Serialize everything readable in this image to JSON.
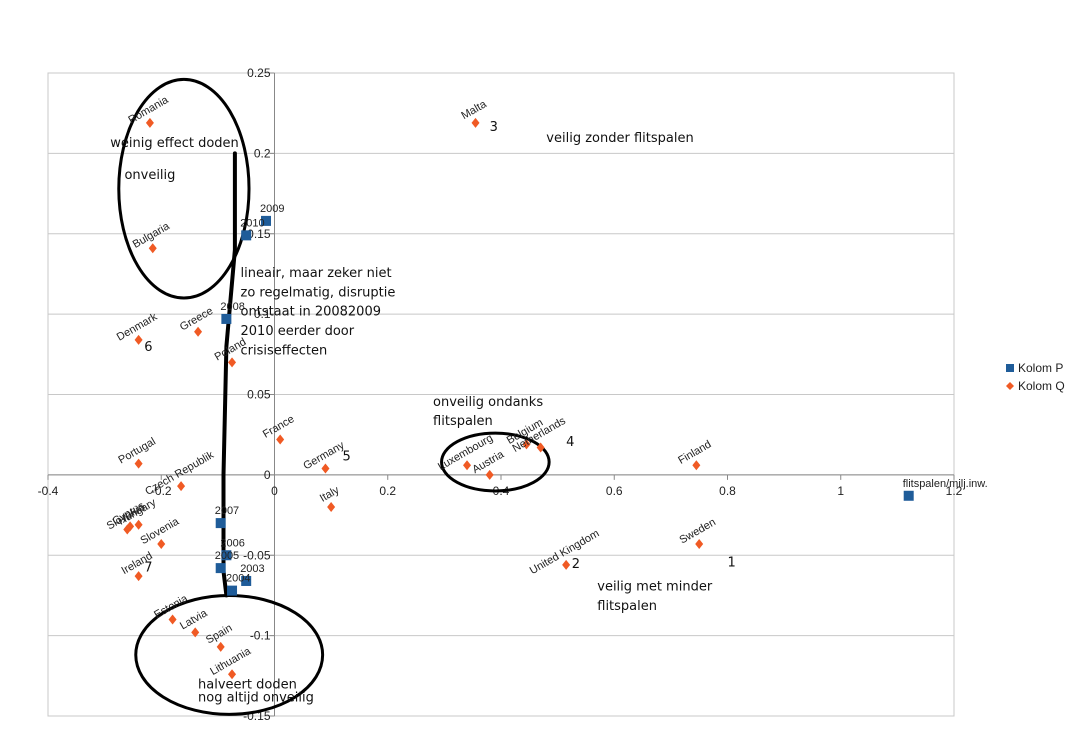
{
  "chart_data": {
    "type": "scatter",
    "xlim": [
      -0.4,
      1.2
    ],
    "ylim": [
      -0.15,
      0.25
    ],
    "x_ticks": [
      "-0.4",
      "-0.2",
      "0",
      "0.2",
      "0.4",
      "0.6",
      "0.8",
      "1",
      "1.2"
    ],
    "y_ticks": [
      "0.25",
      "0.2",
      "0.15",
      "0.1",
      "0.05",
      "0",
      "-0.05",
      "-0.1",
      "-0.15"
    ],
    "grid": "horizontal",
    "legend_position": "right",
    "series": [
      {
        "name": "Kolom P",
        "color": "#1f5c99",
        "marker": "square",
        "points": [
          {
            "x": -0.015,
            "y": 0.158,
            "label": "2009"
          },
          {
            "x": -0.05,
            "y": 0.149,
            "label": "2010"
          },
          {
            "x": -0.085,
            "y": 0.097,
            "label": "2008"
          },
          {
            "x": -0.095,
            "y": -0.03,
            "label": "2007"
          },
          {
            "x": -0.085,
            "y": -0.05,
            "label": "2006"
          },
          {
            "x": -0.095,
            "y": -0.058,
            "label": "2005"
          },
          {
            "x": -0.05,
            "y": -0.066,
            "label": "2003"
          },
          {
            "x": -0.075,
            "y": -0.072,
            "label": "2004"
          },
          {
            "x": 1.12,
            "y": -0.013,
            "label": "flitspalen/milj.inw."
          }
        ]
      },
      {
        "name": "Kolom Q",
        "color": "#f05a24",
        "marker": "diamond",
        "points": [
          {
            "x": -0.22,
            "y": 0.219,
            "label": "Romania"
          },
          {
            "x": -0.215,
            "y": 0.141,
            "label": "Bulgaria"
          },
          {
            "x": -0.24,
            "y": 0.084,
            "label": "Denmark"
          },
          {
            "x": -0.135,
            "y": 0.089,
            "label": "Greece"
          },
          {
            "x": -0.075,
            "y": 0.07,
            "label": "Poland"
          },
          {
            "x": -0.24,
            "y": 0.007,
            "label": "Portugal"
          },
          {
            "x": -0.165,
            "y": -0.007,
            "label": "Czech Republik"
          },
          {
            "x": 0.01,
            "y": 0.022,
            "label": "France"
          },
          {
            "x": 0.09,
            "y": 0.004,
            "label": "Germany"
          },
          {
            "x": 0.1,
            "y": -0.02,
            "label": "Italy"
          },
          {
            "x": -0.255,
            "y": -0.032,
            "label": "Cyprus"
          },
          {
            "x": -0.26,
            "y": -0.034,
            "label": "Slovakia"
          },
          {
            "x": -0.24,
            "y": -0.031,
            "label": "Hungary"
          },
          {
            "x": -0.2,
            "y": -0.043,
            "label": "Slovenia"
          },
          {
            "x": -0.24,
            "y": -0.063,
            "label": "Ireland"
          },
          {
            "x": -0.18,
            "y": -0.09,
            "label": "Estonia"
          },
          {
            "x": -0.14,
            "y": -0.098,
            "label": "Latvia"
          },
          {
            "x": -0.095,
            "y": -0.107,
            "label": "Spain"
          },
          {
            "x": -0.075,
            "y": -0.124,
            "label": "Lithuania"
          },
          {
            "x": 0.355,
            "y": 0.219,
            "label": "Malta"
          },
          {
            "x": 0.34,
            "y": 0.006,
            "label": "Luxembourg"
          },
          {
            "x": 0.38,
            "y": 0.0,
            "label": "Austria"
          },
          {
            "x": 0.445,
            "y": 0.019,
            "label": "Belgium"
          },
          {
            "x": 0.47,
            "y": 0.017,
            "label": "Netherlands"
          },
          {
            "x": 0.515,
            "y": -0.056,
            "label": "United Kingdom"
          },
          {
            "x": 0.745,
            "y": 0.006,
            "label": "Finland"
          },
          {
            "x": 0.75,
            "y": -0.043,
            "label": "Sweden"
          }
        ]
      }
    ],
    "annotations": [
      {
        "text": "weinig effect doden",
        "x": -0.29,
        "y": 0.204
      },
      {
        "text": "onveilig",
        "x": -0.265,
        "y": 0.184
      },
      {
        "text": "lineair, maar zeker niet",
        "x": -0.06,
        "y": 0.123
      },
      {
        "text": "zo regelmatig, disruptie",
        "x": -0.06,
        "y": 0.111
      },
      {
        "text": "ontstaat in 20082009",
        "x": -0.06,
        "y": 0.099
      },
      {
        "text": "2010 eerder door",
        "x": -0.06,
        "y": 0.087
      },
      {
        "text": "crisiseffecten",
        "x": -0.06,
        "y": 0.075
      },
      {
        "text": "veilig zonder flitspalen",
        "x": 0.48,
        "y": 0.207
      },
      {
        "text": "onveilig ondanks",
        "x": 0.28,
        "y": 0.043
      },
      {
        "text": "flitspalen",
        "x": 0.28,
        "y": 0.031
      },
      {
        "text": "veilig met minder",
        "x": 0.57,
        "y": -0.072
      },
      {
        "text": "flitspalen",
        "x": 0.57,
        "y": -0.084
      },
      {
        "text": "halveert doden",
        "x": -0.135,
        "y": -0.133
      },
      {
        "text": "nog altijd onveilig",
        "x": -0.135,
        "y": -0.141
      }
    ],
    "numbers": [
      {
        "text": "1",
        "x": 0.8,
        "y": -0.057
      },
      {
        "text": "2",
        "x": 0.525,
        "y": -0.058
      },
      {
        "text": "3",
        "x": 0.38,
        "y": 0.214
      },
      {
        "text": "4",
        "x": 0.515,
        "y": 0.018
      },
      {
        "text": "5",
        "x": 0.12,
        "y": 0.009
      },
      {
        "text": "6",
        "x": -0.23,
        "y": 0.077
      },
      {
        "text": "7",
        "x": -0.23,
        "y": -0.06
      }
    ],
    "ellipses": [
      {
        "cx": -0.16,
        "cy": 0.178,
        "rx": 0.115,
        "ry": 0.068
      },
      {
        "cx": 0.39,
        "cy": 0.008,
        "rx": 0.095,
        "ry": 0.018
      },
      {
        "cx": -0.08,
        "cy": -0.112,
        "rx": 0.165,
        "ry": 0.037
      }
    ],
    "freehand_line": [
      {
        "x": -0.07,
        "y": 0.2
      },
      {
        "x": -0.07,
        "y": 0.14
      },
      {
        "x": -0.085,
        "y": 0.08
      },
      {
        "x": -0.09,
        "y": 0.0
      },
      {
        "x": -0.09,
        "y": -0.06
      },
      {
        "x": -0.085,
        "y": -0.075
      }
    ]
  },
  "legend": {
    "items": [
      {
        "name": "Kolom P",
        "color": "#1f5c99",
        "marker": "square"
      },
      {
        "name": "Kolom Q",
        "color": "#f05a24",
        "marker": "diamond"
      }
    ]
  }
}
